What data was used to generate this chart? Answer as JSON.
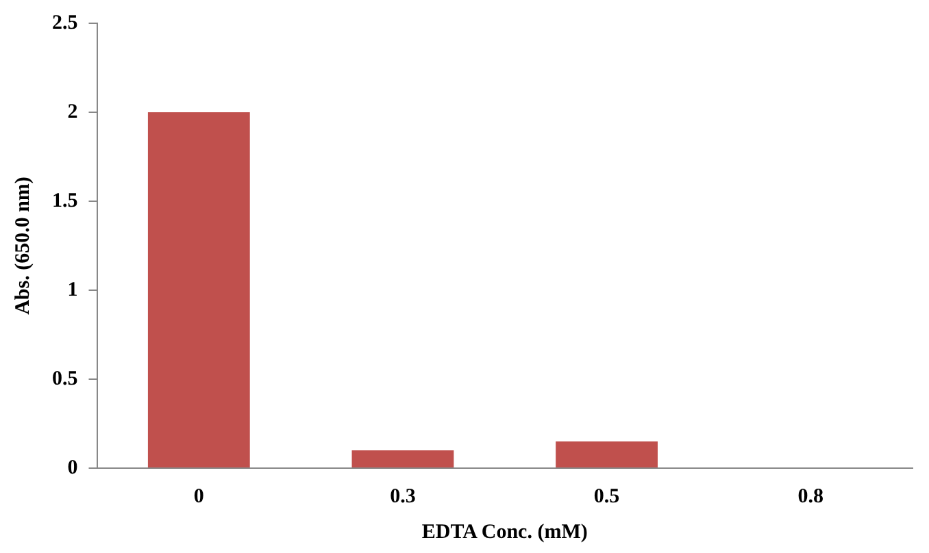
{
  "chart_data": {
    "type": "bar",
    "xlabel": "EDTA Conc. (mM)",
    "ylabel": "Abs. (650.0 nm)",
    "categories": [
      "0",
      "0.3",
      "0.5",
      "0.8"
    ],
    "values": [
      2.0,
      0.1,
      0.15,
      0
    ],
    "color": "#c0504d",
    "ylim": [
      0,
      2.5
    ],
    "yticks": [
      0,
      0.5,
      1,
      1.5,
      2,
      2.5
    ],
    "grid": false,
    "legend": false
  }
}
